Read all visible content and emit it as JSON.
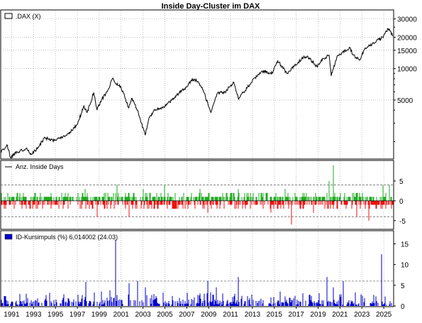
{
  "chart_data": {
    "title": "Inside Day-Cluster im DAX",
    "x_axis": {
      "start": 1990,
      "end": 2025.9,
      "tick_labels": [
        "1991",
        "1993",
        "1995",
        "1997",
        "1999",
        "2001",
        "2003",
        "2005",
        "2007",
        "2009",
        "2011",
        "2013",
        "2015",
        "2017",
        "2019",
        "2021",
        "2023",
        "2025"
      ],
      "grid": "dotted"
    },
    "panels": [
      {
        "type": "line",
        "legend": ".DAX (X)",
        "y_scale": "log",
        "ylim": [
          1380,
          36000
        ],
        "y_ticks": [
          5000,
          10000,
          15000,
          20000,
          30000
        ],
        "y_tick_labels": [
          "5000",
          "10000",
          "15000",
          "20000",
          "30000"
        ],
        "color": "#000000",
        "series": [
          {
            "x": 1990.0,
            "y": 1600
          },
          {
            "x": 1990.6,
            "y": 1850
          },
          {
            "x": 1990.9,
            "y": 1400
          },
          {
            "x": 1991.5,
            "y": 1600
          },
          {
            "x": 1992.3,
            "y": 1700
          },
          {
            "x": 1992.8,
            "y": 1500
          },
          {
            "x": 1993.5,
            "y": 1800
          },
          {
            "x": 1994.0,
            "y": 2200
          },
          {
            "x": 1994.5,
            "y": 2050
          },
          {
            "x": 1995.0,
            "y": 2050
          },
          {
            "x": 1995.6,
            "y": 2200
          },
          {
            "x": 1996.0,
            "y": 2300
          },
          {
            "x": 1996.5,
            "y": 2550
          },
          {
            "x": 1997.0,
            "y": 2900
          },
          {
            "x": 1997.6,
            "y": 4400
          },
          {
            "x": 1997.9,
            "y": 3800
          },
          {
            "x": 1998.5,
            "y": 5900
          },
          {
            "x": 1998.8,
            "y": 4000
          },
          {
            "x": 1999.2,
            "y": 5000
          },
          {
            "x": 1999.9,
            "y": 6500
          },
          {
            "x": 2000.2,
            "y": 8000
          },
          {
            "x": 2000.5,
            "y": 7200
          },
          {
            "x": 2001.0,
            "y": 6600
          },
          {
            "x": 2001.7,
            "y": 4200
          },
          {
            "x": 2002.0,
            "y": 5200
          },
          {
            "x": 2002.5,
            "y": 4000
          },
          {
            "x": 2003.2,
            "y": 2300
          },
          {
            "x": 2003.5,
            "y": 3200
          },
          {
            "x": 2004.0,
            "y": 4000
          },
          {
            "x": 2005.0,
            "y": 4300
          },
          {
            "x": 2006.0,
            "y": 5500
          },
          {
            "x": 2007.0,
            "y": 6700
          },
          {
            "x": 2007.5,
            "y": 8000
          },
          {
            "x": 2008.0,
            "y": 7500
          },
          {
            "x": 2008.5,
            "y": 6200
          },
          {
            "x": 2009.2,
            "y": 3800
          },
          {
            "x": 2009.8,
            "y": 5800
          },
          {
            "x": 2010.5,
            "y": 6000
          },
          {
            "x": 2011.3,
            "y": 7400
          },
          {
            "x": 2011.7,
            "y": 5200
          },
          {
            "x": 2012.5,
            "y": 6500
          },
          {
            "x": 2013.0,
            "y": 7700
          },
          {
            "x": 2014.0,
            "y": 9500
          },
          {
            "x": 2014.8,
            "y": 9000
          },
          {
            "x": 2015.3,
            "y": 12000
          },
          {
            "x": 2015.8,
            "y": 10000
          },
          {
            "x": 2016.2,
            "y": 9000
          },
          {
            "x": 2016.8,
            "y": 10500
          },
          {
            "x": 2017.5,
            "y": 12500
          },
          {
            "x": 2018.0,
            "y": 13200
          },
          {
            "x": 2018.9,
            "y": 10500
          },
          {
            "x": 2019.5,
            "y": 12500
          },
          {
            "x": 2020.0,
            "y": 13500
          },
          {
            "x": 2020.2,
            "y": 8500
          },
          {
            "x": 2020.7,
            "y": 12800
          },
          {
            "x": 2021.0,
            "y": 13800
          },
          {
            "x": 2021.9,
            "y": 15800
          },
          {
            "x": 2022.2,
            "y": 13500
          },
          {
            "x": 2022.8,
            "y": 12200
          },
          {
            "x": 2023.3,
            "y": 15800
          },
          {
            "x": 2023.9,
            "y": 16800
          },
          {
            "x": 2024.3,
            "y": 18200
          },
          {
            "x": 2024.9,
            "y": 20000
          },
          {
            "x": 2025.2,
            "y": 23000
          },
          {
            "x": 2025.5,
            "y": 24000
          },
          {
            "x": 2025.8,
            "y": 20500
          }
        ]
      },
      {
        "type": "bar",
        "legend": "Anz. Inside Days",
        "ylim": [
          -7,
          10
        ],
        "y_ticks": [
          -5,
          0,
          5
        ],
        "y_tick_labels": [
          "-5",
          "0",
          "5"
        ],
        "reference_lines": [
          4,
          -4
        ],
        "colors": {
          "positive": "#22aa22",
          "negative": "#ee1111",
          "line": "#000000"
        },
        "highlights": [
          {
            "x": 1997.7,
            "y": 3
          },
          {
            "x": 2000.6,
            "y": 4
          },
          {
            "x": 2003.0,
            "y": 3
          },
          {
            "x": 2005.0,
            "y": 4
          },
          {
            "x": 2008.2,
            "y": 3
          },
          {
            "x": 2011.7,
            "y": 3
          },
          {
            "x": 2016.0,
            "y": 3
          },
          {
            "x": 2020.4,
            "y": 9
          },
          {
            "x": 2020.0,
            "y": 5
          },
          {
            "x": 2024.9,
            "y": 4
          },
          {
            "x": 2025.5,
            "y": 4
          },
          {
            "x": 1998.8,
            "y": -4
          },
          {
            "x": 2001.7,
            "y": -4
          },
          {
            "x": 2008.9,
            "y": -3
          },
          {
            "x": 2014.7,
            "y": -3
          },
          {
            "x": 2016.6,
            "y": -6
          },
          {
            "x": 2018.6,
            "y": -3
          },
          {
            "x": 2022.5,
            "y": -4
          },
          {
            "x": 2023.6,
            "y": -5
          }
        ]
      },
      {
        "type": "bar",
        "legend": "ID-Kursimpuls (%) 6,014002 (24.03)",
        "ylim": [
          0,
          18
        ],
        "y_ticks": [
          0,
          5,
          10,
          15
        ],
        "y_tick_labels": [
          "0",
          "5",
          "10",
          "15"
        ],
        "reference_lines": [
          6.014002
        ],
        "color": "#0000cc",
        "highlights": [
          {
            "x": 1997.8,
            "y": 5.8
          },
          {
            "x": 1999.2,
            "y": 3.5
          },
          {
            "x": 2000.0,
            "y": 3.8
          },
          {
            "x": 2000.5,
            "y": 16
          },
          {
            "x": 2001.7,
            "y": 5.5
          },
          {
            "x": 2002.5,
            "y": 6
          },
          {
            "x": 2003.2,
            "y": 4.5
          },
          {
            "x": 2008.9,
            "y": 6
          },
          {
            "x": 2009.7,
            "y": 4.5
          },
          {
            "x": 2011.7,
            "y": 7
          },
          {
            "x": 2015.5,
            "y": 3.5
          },
          {
            "x": 2019.8,
            "y": 7
          },
          {
            "x": 2020.4,
            "y": 4.5
          },
          {
            "x": 2021.3,
            "y": 6
          },
          {
            "x": 2024.8,
            "y": 12.5
          }
        ]
      }
    ]
  }
}
